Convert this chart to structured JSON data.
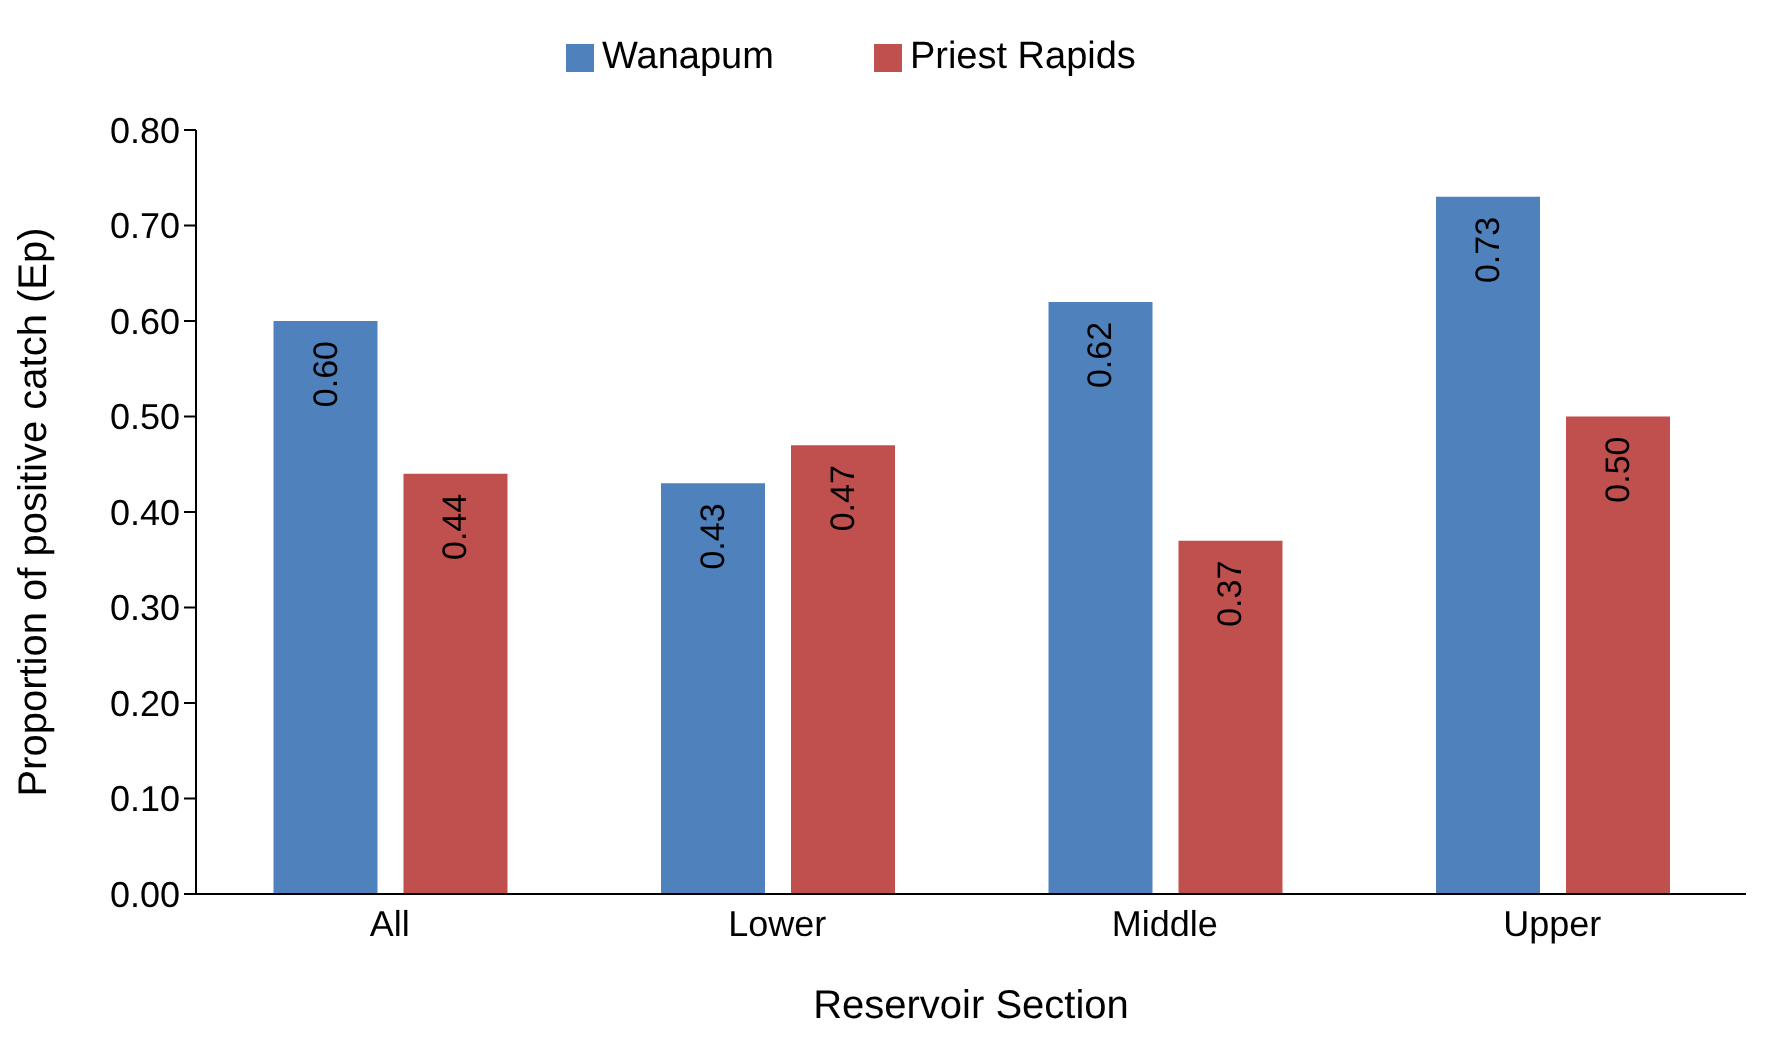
{
  "chart_data": {
    "type": "bar",
    "xlabel": "Reservoir Section",
    "ylabel": "Proportion of positive catch (Ep)",
    "categories": [
      "All",
      "Lower",
      "Middle",
      "Upper"
    ],
    "series": [
      {
        "name": "Wanapum",
        "color": "#4f81bd",
        "values": [
          0.6,
          0.43,
          0.62,
          0.73
        ],
        "value_labels": [
          "0.60",
          "0.43",
          "0.62",
          "0.73"
        ]
      },
      {
        "name": "Priest Rapids",
        "color": "#c0504d",
        "values": [
          0.44,
          0.47,
          0.37,
          0.5
        ],
        "value_labels": [
          "0.44",
          "0.47",
          "0.37",
          "0.50"
        ]
      }
    ],
    "ylim": [
      0,
      0.8
    ],
    "yticks": [
      {
        "value": 0,
        "label": "0.00"
      },
      {
        "value": 0.1,
        "label": "0.10"
      },
      {
        "value": 0.2,
        "label": "0.20"
      },
      {
        "value": 0.3,
        "label": "0.30"
      },
      {
        "value": 0.4,
        "label": "0.40"
      },
      {
        "value": 0.5,
        "label": "0.50"
      },
      {
        "value": 0.6,
        "label": "0.60"
      },
      {
        "value": 0.7,
        "label": "0.70"
      },
      {
        "value": 0.8,
        "label": "0.80"
      }
    ],
    "grid": false,
    "legend": "top"
  }
}
